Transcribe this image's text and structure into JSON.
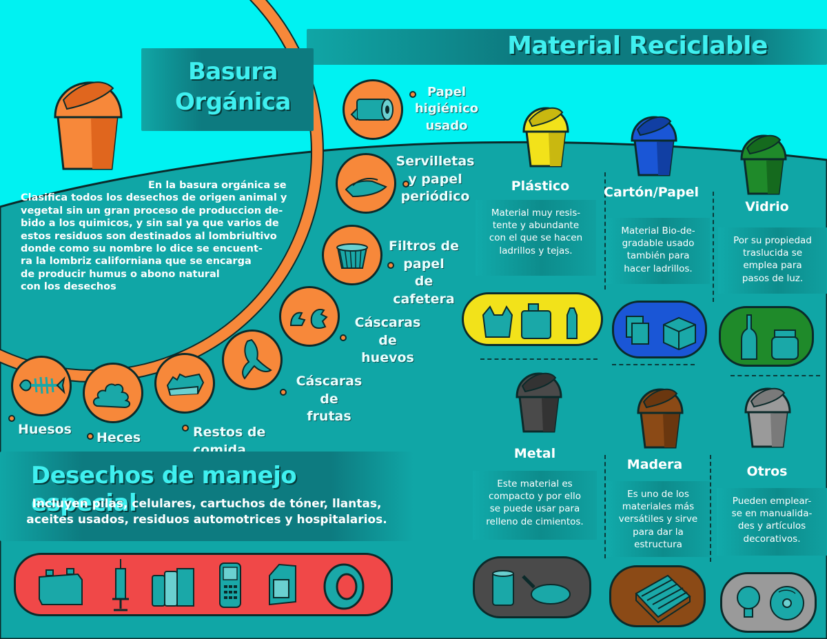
{
  "organic": {
    "title_line1": "Basura",
    "title_line2": "Orgánica",
    "description_lines": [
      "En la basura orgánica se",
      "Clasifica todos los desechos de origen animal y",
      "vegetal sin un gran proceso de produccion de-",
      "bido a los quimicos, y sin sal ya que varios de",
      "estos residuos son destinados al lombriultivo",
      "donde como su nombre lo dice se encuent-",
      "ra la lombriz californiana que se encarga",
      "de producir humus o abono natural",
      "con los desechos"
    ],
    "items": [
      {
        "label_lines": [
          "Papel",
          "higiénico",
          "usado"
        ],
        "icon": "toilet-paper-icon"
      },
      {
        "label_lines": [
          "Servilletas",
          "y papel",
          "periódico"
        ],
        "icon": "napkin-icon"
      },
      {
        "label_lines": [
          "Filtros de",
          "papel",
          "de cafetera"
        ],
        "icon": "coffee-filter-icon"
      },
      {
        "label_lines": [
          "Cáscaras de",
          "huevos"
        ],
        "icon": "eggshell-icon"
      },
      {
        "label_lines": [
          "Cáscaras de",
          "frutas"
        ],
        "icon": "banana-peel-icon"
      },
      {
        "label_lines": [
          "Restos de comida"
        ],
        "icon": "bread-icon"
      },
      {
        "label_lines": [
          "Heces"
        ],
        "icon": "feces-icon"
      },
      {
        "label_lines": [
          "Huesos"
        ],
        "icon": "fish-bone-icon"
      }
    ]
  },
  "recyclable": {
    "title": "Material Reciclable",
    "materials": [
      {
        "name": "Plástico",
        "desc_lines": [
          "Material  muy resis-",
          "tente y abundante",
          "con el que se hacen",
          "ladrillos y tejas."
        ],
        "color": "#f2e21a"
      },
      {
        "name": "Cartón/Papel",
        "desc_lines": [
          "Material Bio-de-",
          "gradable usado",
          "también para",
          "hacer ladrillos."
        ],
        "color": "#1a56d6"
      },
      {
        "name": "Vidrio",
        "desc_lines": [
          "Por su propiedad",
          "traslucida se",
          "emplea para",
          "pasos de luz."
        ],
        "color": "#1f8a2a"
      },
      {
        "name": "Metal",
        "desc_lines": [
          "Este material es",
          "compacto y por ello",
          "se puede usar para",
          "relleno de cimientos."
        ],
        "color": "#4a4a4a"
      },
      {
        "name": "Madera",
        "desc_lines": [
          "Es uno de los",
          "materiales más",
          "versátiles y sirve",
          "para dar la",
          "estructura"
        ],
        "color": "#8b4a16"
      },
      {
        "name": "Otros",
        "desc_lines": [
          "Pueden emplear-",
          "se en manualida-",
          "des y artículos",
          "decorativos."
        ],
        "color": "#9a9a9a"
      }
    ]
  },
  "special": {
    "title": "Desechos de manejo especial",
    "desc_line1": "Incluyen pilas, celulares, cartuchos de tóner, llantas,",
    "desc_line2": "aceites usados, residuos automotrices y hospitalarios.",
    "icons": [
      "car-battery-icon",
      "syringe-icon",
      "batteries-icon",
      "cellphone-icon",
      "toner-cartridge-icon",
      "tire-icon"
    ]
  },
  "colors": {
    "sky": "#00f4f4",
    "ground": "#10a6a6",
    "orange": "#f7883a",
    "band": "#0d7f83",
    "special_pill": "#f04848"
  }
}
